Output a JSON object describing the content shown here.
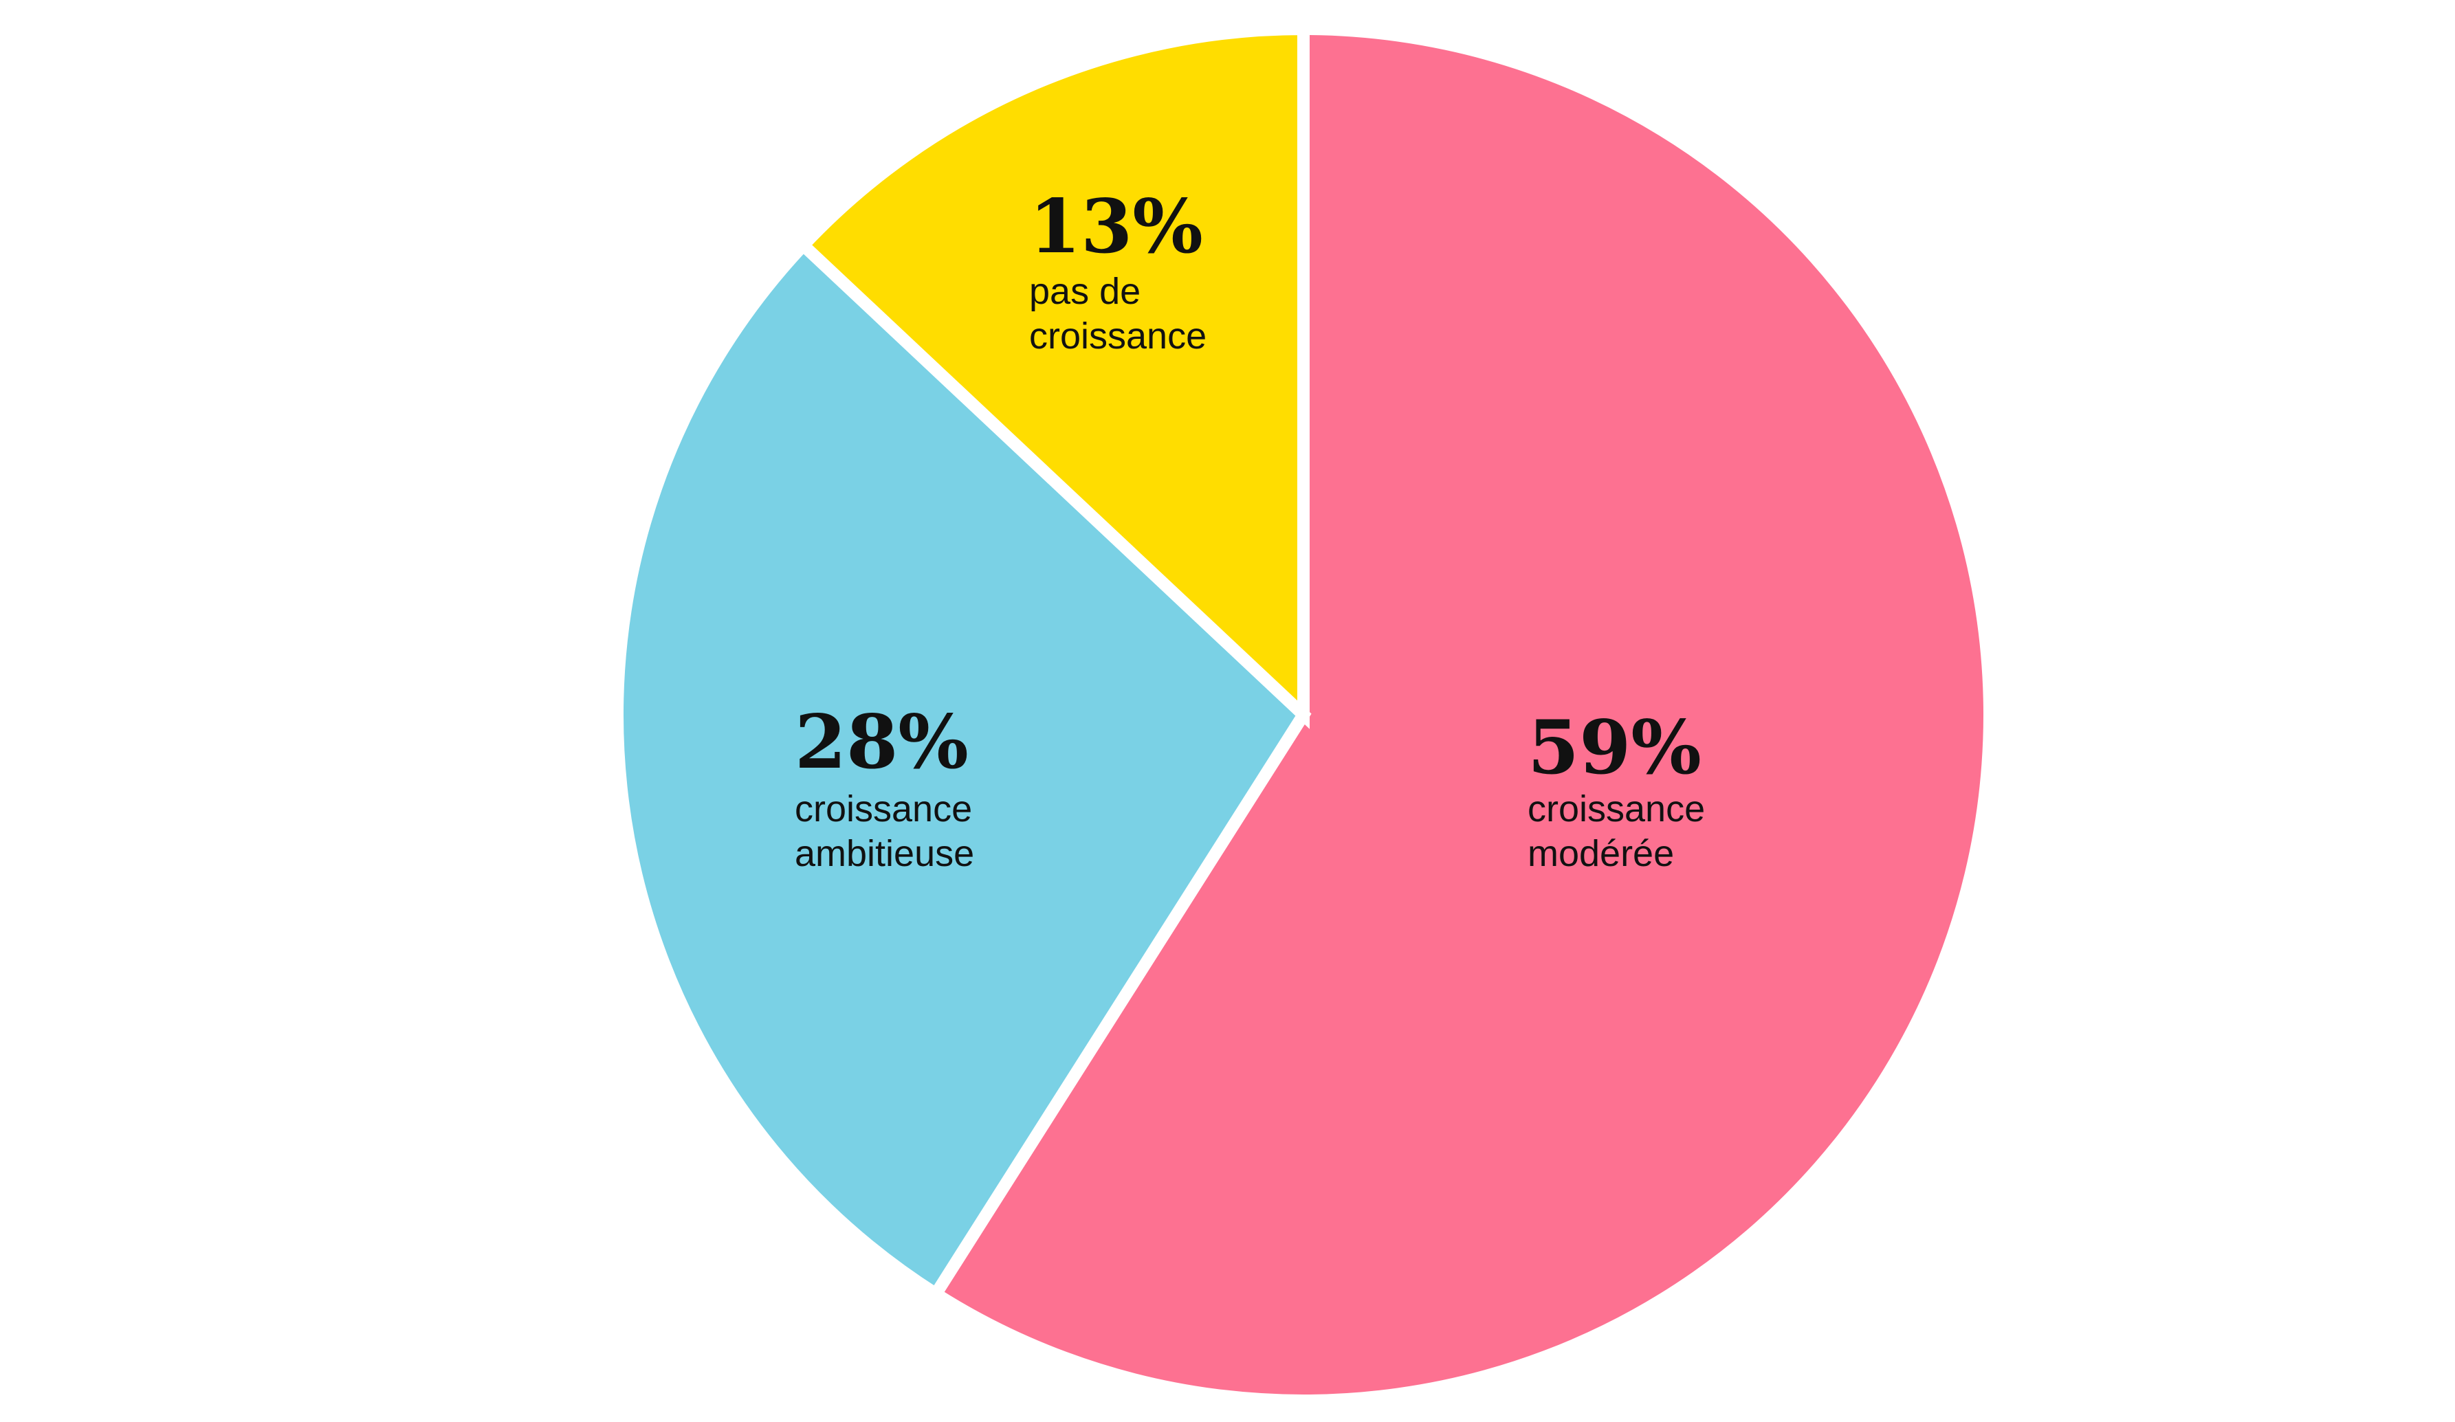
{
  "chart_data": {
    "type": "pie",
    "title": "",
    "slices": [
      {
        "key": "moderee",
        "value": 59,
        "label_value": "59%",
        "label_lines": [
          "croissance",
          "modérée"
        ],
        "color": "#fd7191"
      },
      {
        "key": "ambitieuse",
        "value": 28,
        "label_value": "28%",
        "label_lines": [
          "croissance",
          "ambitieuse"
        ],
        "color": "#7ad1e5"
      },
      {
        "key": "pas",
        "value": 13,
        "label_value": "13%",
        "label_lines": [
          "pas de",
          "croissance"
        ],
        "color": "#ffdd00"
      }
    ],
    "start_angle": "12 o'clock",
    "direction": "clockwise",
    "separator_color": "#ffffff",
    "legend": "none"
  }
}
